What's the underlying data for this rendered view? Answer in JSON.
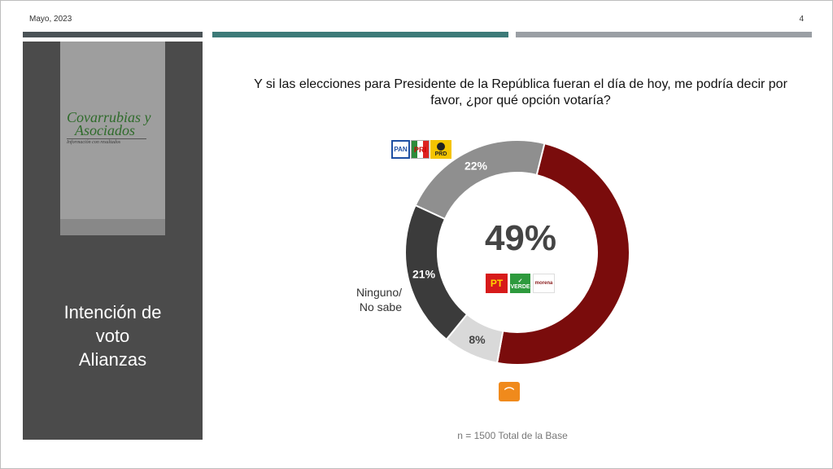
{
  "header": {
    "date": "Mayo, 2023",
    "page_number": "4"
  },
  "sidebar": {
    "logo_line1": "Covarrubias y",
    "logo_line2": "Asociados",
    "logo_tagline": "Información con resultados",
    "title_lines": [
      "Intención de",
      "voto",
      "Alianzas"
    ]
  },
  "question": "Y si las elecciones para Presidente de la República fueran el día de hoy, me podría decir por favor, ¿por qué opción votaría?",
  "footnote": "n = 1500 Total de la Base",
  "labels": {
    "ninguno_line1": "Ninguno/",
    "ninguno_line2": "No sabe"
  },
  "party_logos": {
    "pan": "PAN",
    "pri": "PRI",
    "prd": "PRD",
    "pt": "PT",
    "verde": "VERDE",
    "morena": "morena",
    "mc": "MC-icon"
  },
  "chart_data": {
    "type": "pie",
    "variant": "donut",
    "start_angle_deg": 14,
    "slices": [
      {
        "label": "PT / VERDE / morena",
        "value": 49,
        "display": "49%",
        "color": "#7a0c0c"
      },
      {
        "label": "MC",
        "value": 8,
        "display": "8%",
        "color": "#d9d9d9"
      },
      {
        "label": "Ninguno/No sabe",
        "value": 21,
        "display": "21%",
        "color": "#3b3b3b"
      },
      {
        "label": "PAN / PRI / PRD",
        "value": 22,
        "display": "22%",
        "color": "#8f8f8f"
      }
    ],
    "center_label": "49%"
  }
}
